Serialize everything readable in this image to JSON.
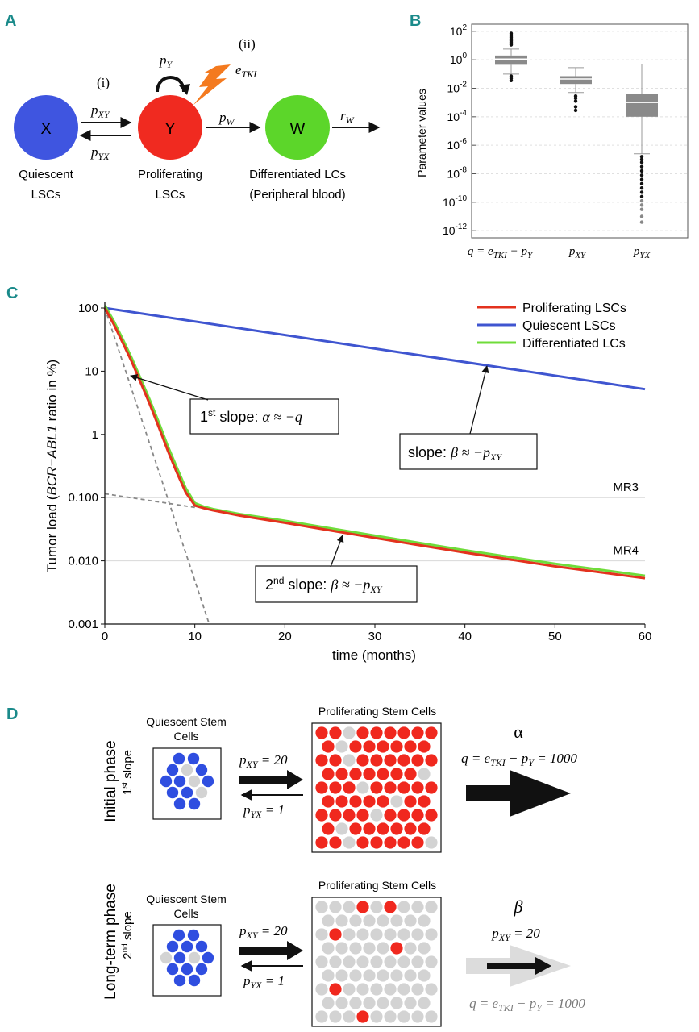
{
  "panels": {
    "A": "A",
    "B": "B",
    "C": "C",
    "D": "D"
  },
  "panelA": {
    "nodes": [
      {
        "id": "X",
        "label": "X",
        "color": "#3f55e0",
        "caption1": "Quiescent",
        "caption2": "LSCs"
      },
      {
        "id": "Y",
        "label": "Y",
        "color": "#f02a20",
        "caption1": "Proliferating",
        "caption2": "LSCs"
      },
      {
        "id": "W",
        "label": "W",
        "color": "#5cd62a",
        "caption1": "Differentiated LCs",
        "caption2": "(Peripheral blood)"
      }
    ],
    "step_i": "(i)",
    "step_ii": "(ii)",
    "pXY": "p",
    "pXY_sub": "XY",
    "pYX": "p",
    "pYX_sub": "YX",
    "pY": "p",
    "pY_sub": "Y",
    "eTKI": "e",
    "eTKI_sub": "TKI",
    "pW": "p",
    "pW_sub": "W",
    "rW": "r",
    "rW_sub": "W",
    "colors": {
      "lightning": "#f47a1f"
    }
  },
  "panelB": {
    "chart_data": {
      "type": "box",
      "ylabel": "Parameter values",
      "yscale": "log10",
      "ylim_exp": [
        -12.5,
        2.5
      ],
      "yticks": [
        {
          "exp": 2,
          "base": "10",
          "sup": "2"
        },
        {
          "exp": 0,
          "base": "10",
          "sup": "0"
        },
        {
          "exp": -2,
          "base": "10",
          "sup": "-2"
        },
        {
          "exp": -4,
          "base": "10",
          "sup": "-4"
        },
        {
          "exp": -6,
          "base": "10",
          "sup": "-6"
        },
        {
          "exp": -8,
          "base": "10",
          "sup": "-8"
        },
        {
          "exp": -10,
          "base": "10",
          "sup": "-10"
        },
        {
          "exp": -12,
          "base": "10",
          "sup": "-12"
        }
      ],
      "boxes": [
        {
          "label": "q = e",
          "label_sub": "TKI",
          "label_rest": " − p",
          "label_sub2": "Y",
          "whisker_low": -1.0,
          "q1": -0.35,
          "median": 0.05,
          "q3": 0.3,
          "whisker_high": 0.75,
          "outliers": [
            1.85,
            1.75,
            1.65,
            1.55,
            1.45,
            1.35,
            1.25,
            1.15,
            1.05,
            -1.15,
            -1.3,
            -1.45
          ]
        },
        {
          "label": "p",
          "label_sub": "XY",
          "label_rest": "",
          "label_sub2": "",
          "whisker_low": -2.3,
          "q1": -1.7,
          "median": -1.35,
          "q3": -1.15,
          "whisker_high": -0.55,
          "outliers": [
            -2.55,
            -2.7,
            -2.9,
            -3.3,
            -3.55
          ]
        },
        {
          "label": "p",
          "label_sub": "YX",
          "label_rest": "",
          "label_sub2": "",
          "whisker_low": -6.6,
          "q1": -4.0,
          "median": -3.0,
          "q3": -2.4,
          "whisker_high": -0.3,
          "outliers": [
            -6.8,
            -7.0,
            -7.2,
            -7.5,
            -7.8,
            -8.1,
            -8.4,
            -8.7,
            -9.0,
            -9.3,
            -9.6,
            -9.9,
            -10.2,
            -10.5,
            -11.0,
            -11.4
          ]
        }
      ],
      "colors": {
        "box": "#8a8a8a",
        "grid": "#e0e0e0"
      }
    }
  },
  "panelC": {
    "chart_data": {
      "type": "line",
      "xlabel": "time (months)",
      "ylabel_pre": "Tumor load (",
      "ylabel_ital": "BCR−ABL1",
      "ylabel_post": " ratio in %)",
      "yscale": "log10",
      "xlim": [
        0,
        60
      ],
      "ylim": [
        0.001,
        100
      ],
      "xticks": [
        "0",
        "10",
        "20",
        "30",
        "40",
        "50",
        "60"
      ],
      "xtick_values": [
        0,
        10,
        20,
        30,
        40,
        50,
        60
      ],
      "yticks": [
        {
          "v": 100,
          "label": "100"
        },
        {
          "v": 10,
          "label": "10"
        },
        {
          "v": 1,
          "label": "1"
        },
        {
          "v": 0.1,
          "label": "0.100"
        },
        {
          "v": 0.01,
          "label": "0.010"
        },
        {
          "v": 0.001,
          "label": "0.001"
        }
      ],
      "series": [
        {
          "name": "Proliferating LSCs",
          "color": "#e3321e",
          "x": [
            0,
            1,
            2,
            3,
            4,
            5,
            6,
            7,
            8,
            9,
            10,
            11,
            12,
            15,
            20,
            30,
            40,
            50,
            60
          ],
          "y": [
            100,
            55,
            28,
            14,
            6.5,
            3.0,
            1.3,
            0.55,
            0.25,
            0.12,
            0.075,
            0.068,
            0.063,
            0.052,
            0.04,
            0.023,
            0.0135,
            0.0082,
            0.0053
          ]
        },
        {
          "name": "Quiescent LSCs",
          "color": "#3f55d0",
          "x": [
            0,
            60
          ],
          "y": [
            100,
            5.2
          ]
        },
        {
          "name": "Differentiated LCs",
          "color": "#6fdc3a",
          "x": [
            0,
            1,
            2,
            3,
            4,
            5,
            6,
            7,
            8,
            9,
            10,
            11,
            12,
            15,
            20,
            30,
            40,
            50,
            60
          ],
          "y": [
            110,
            62,
            32,
            16,
            7.5,
            3.5,
            1.55,
            0.65,
            0.3,
            0.14,
            0.082,
            0.072,
            0.066,
            0.055,
            0.043,
            0.025,
            0.0147,
            0.009,
            0.0058
          ]
        }
      ],
      "dashed": [
        {
          "name": "first-slope-extension",
          "x": [
            0,
            11.6
          ],
          "y": [
            100,
            0.001
          ]
        },
        {
          "name": "second-slope-extension",
          "x": [
            0,
            10
          ],
          "y": [
            0.115,
            0.07
          ]
        }
      ],
      "reference_lines": [
        {
          "label": "MR3",
          "v": 0.1
        },
        {
          "label": "MR4",
          "v": 0.01
        }
      ],
      "annotations": {
        "first": {
          "pre": "1",
          "sup": "st",
          "post": " slope: ",
          "greek": "α ≈ −",
          "var": "q"
        },
        "second": {
          "pre": "2",
          "sup": "nd",
          "post": " slope: ",
          "greek": "β ≈ −",
          "var": "p",
          "sub": "XY"
        },
        "slope": {
          "pre": "slope: ",
          "greek": "β ≈ −",
          "var": "p",
          "sub": "XY"
        }
      },
      "legend_position": "top-right"
    }
  },
  "panelD": {
    "rows": [
      {
        "phase": "Initial phase",
        "slope_num": "1",
        "slope_sup": "st",
        "slope_word": " slope",
        "quiescent_title1": "Quiescent Stem",
        "quiescent_title2": "Cells",
        "prolif_title": "Proliferating Stem Cells",
        "pXY_label": "p",
        "pXY_sub": "XY",
        "pXY_val": " = 20",
        "pYX_label": "p",
        "pYX_sub": "YX",
        "pYX_val": " = 1",
        "greek": "α",
        "q_pre": "q = e",
        "q_sub": "TKI",
        "q_mid": " − p",
        "q_sub2": "Y",
        "q_val": " = 1000"
      },
      {
        "phase": "Long-term phase",
        "slope_num": "2",
        "slope_sup": "nd",
        "slope_word": " slope",
        "quiescent_title1": "Quiescent Stem",
        "quiescent_title2": "Cells",
        "prolif_title": "Proliferating Stem Cells",
        "pXY_label": "p",
        "pXY_sub": "XY",
        "pXY_val": " = 20",
        "pYX_label": "p",
        "pYX_sub": "YX",
        "pYX_val": " = 1",
        "greek": "β",
        "top_label": "p",
        "top_sub": "XY",
        "top_val": " = 20",
        "q_pre": "q = e",
        "q_sub": "TKI",
        "q_mid": " − p",
        "q_sub2": "Y",
        "q_val": " = 1000"
      }
    ],
    "colors": {
      "blue": "#2f4ee0",
      "red": "#f0281e",
      "gray": "#d3d3d3",
      "faded": "#7a7a7a"
    }
  }
}
